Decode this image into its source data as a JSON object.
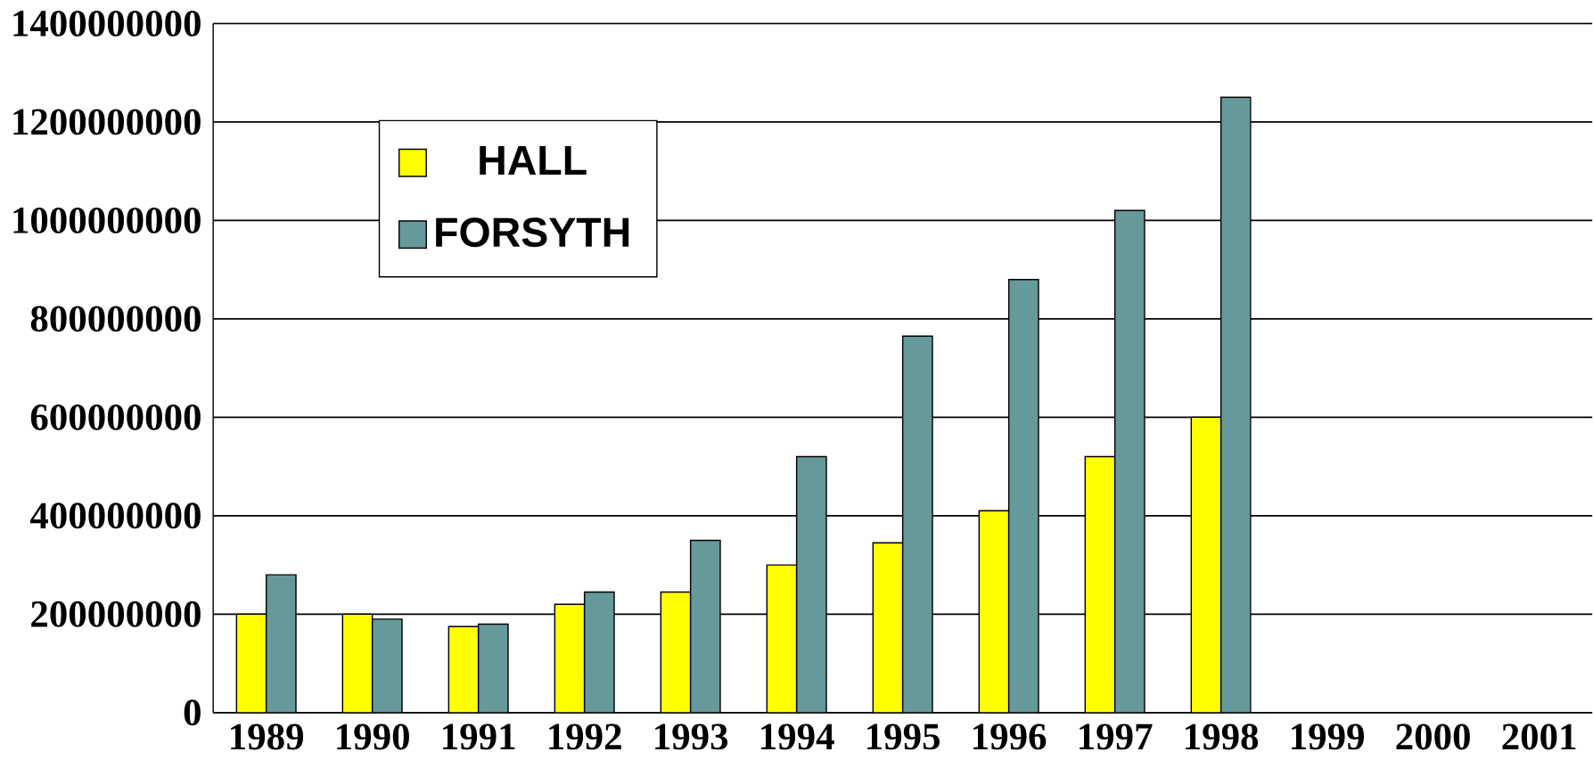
{
  "chart_data": {
    "type": "bar",
    "categories": [
      "1989",
      "1990",
      "1991",
      "1992",
      "1993",
      "1994",
      "1995",
      "1996",
      "1997",
      "1998",
      "1999",
      "2000",
      "2001"
    ],
    "series": [
      {
        "name": "HALL",
        "color": "#ffff00",
        "values": [
          200000000,
          200000000,
          175000000,
          220000000,
          245000000,
          300000000,
          345000000,
          410000000,
          520000000,
          600000000,
          null,
          null,
          null
        ]
      },
      {
        "name": "FORSYTH",
        "color": "#669999",
        "values": [
          280000000,
          190000000,
          180000000,
          245000000,
          350000000,
          520000000,
          765000000,
          880000000,
          1020000000,
          1250000000,
          null,
          null,
          null
        ]
      }
    ],
    "ylim": [
      0,
      1400000000
    ],
    "yticks": [
      0,
      200000000,
      400000000,
      600000000,
      800000000,
      1000000000,
      1200000000,
      1400000000
    ],
    "grid": "y",
    "legend": "top left"
  }
}
